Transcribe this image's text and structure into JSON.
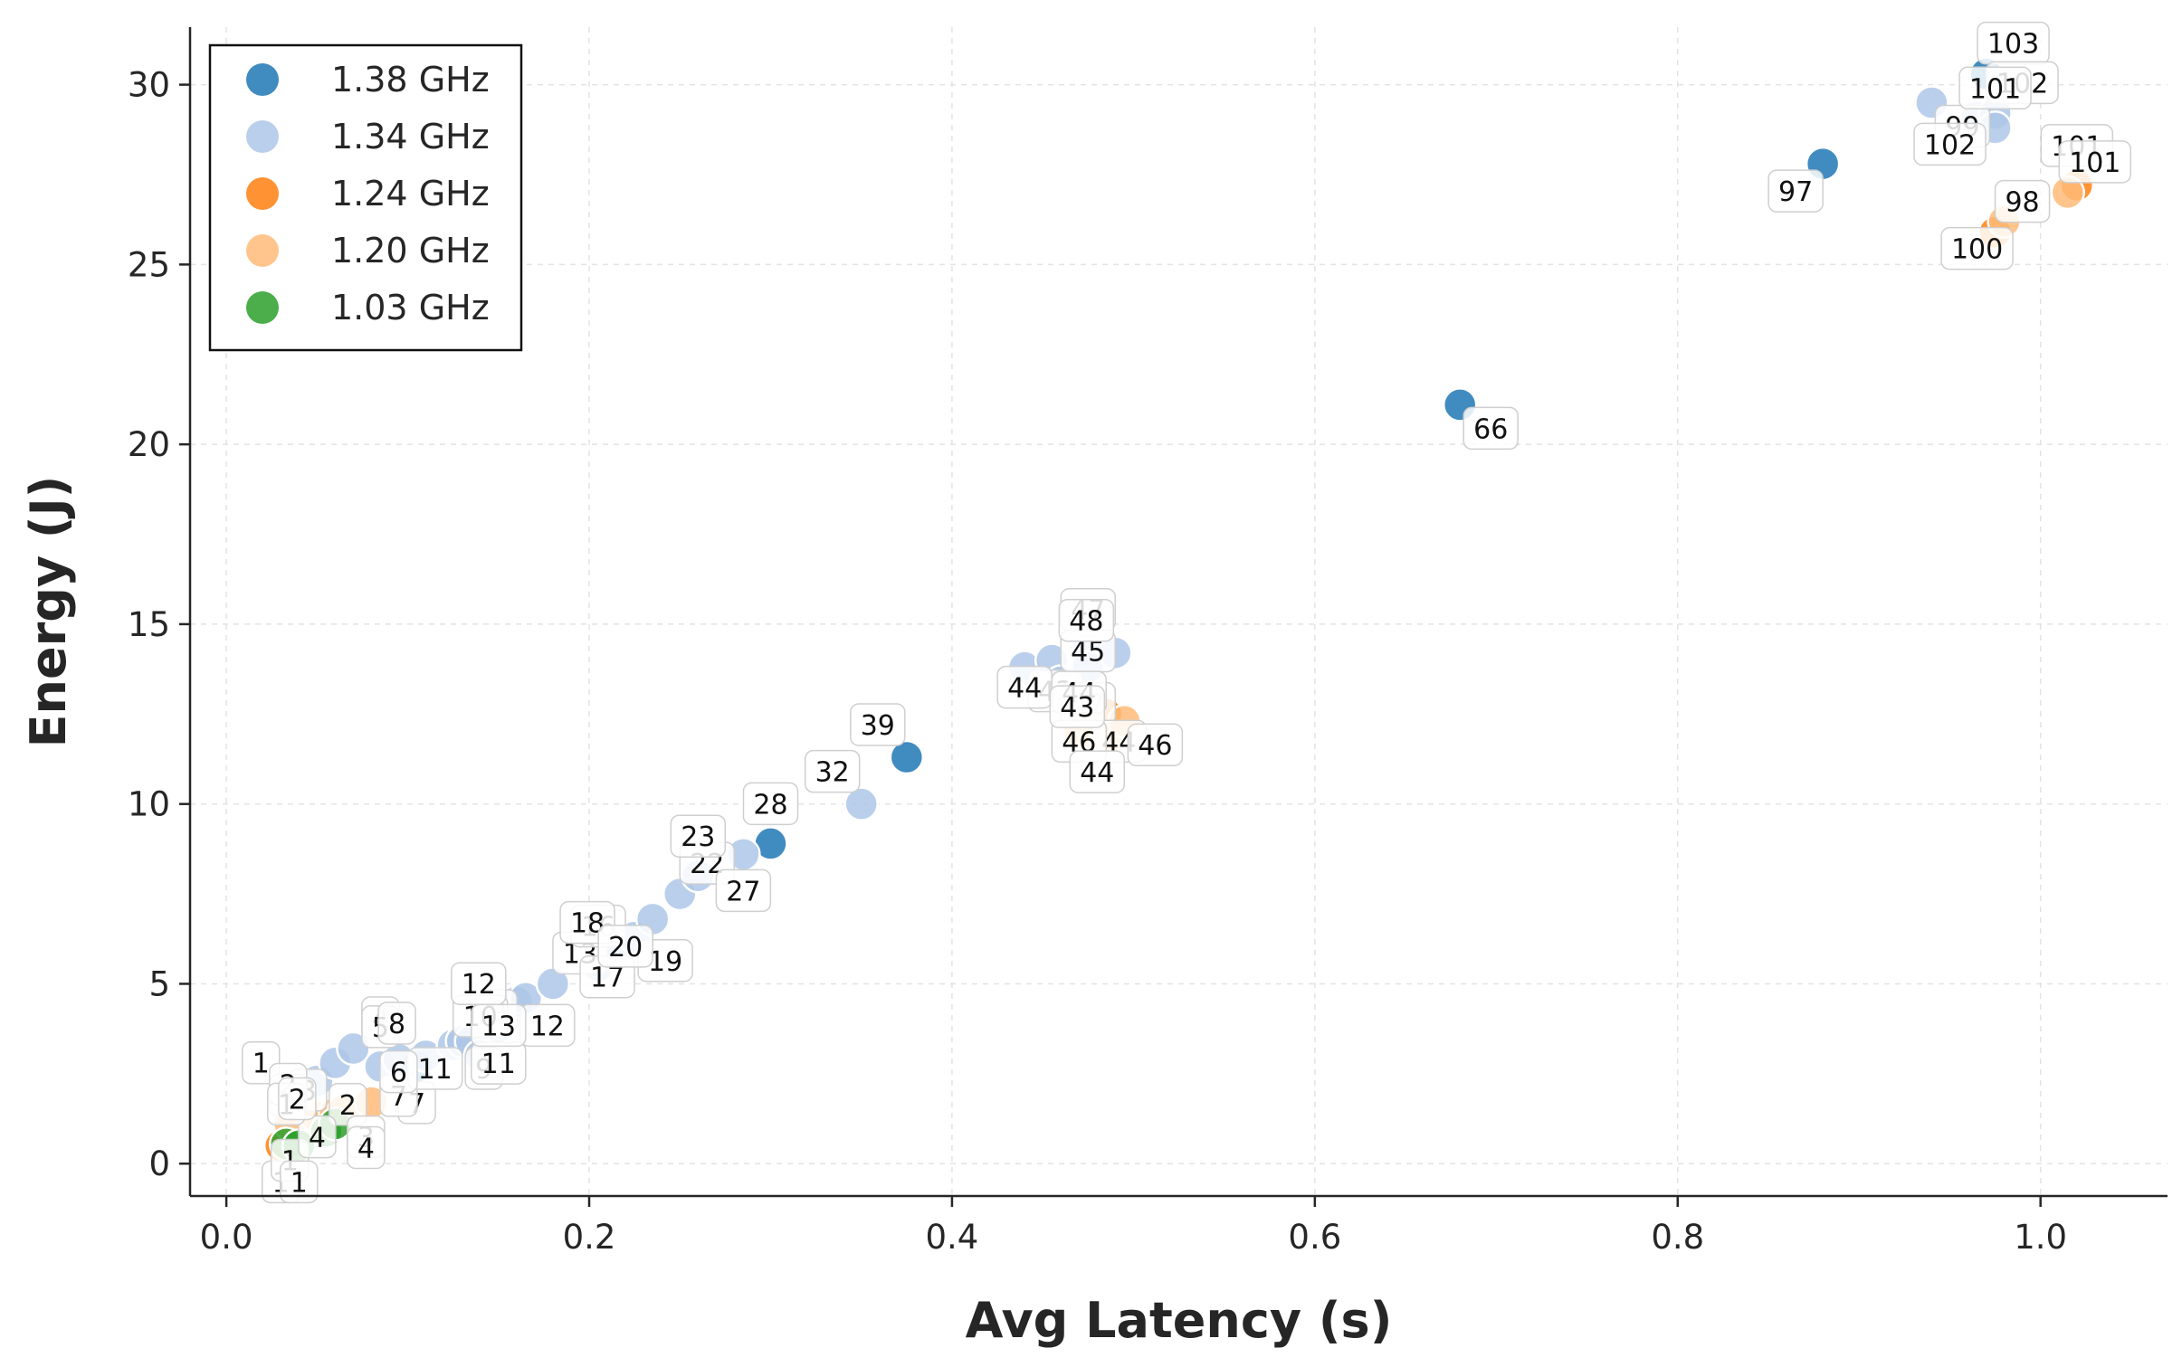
{
  "chart_data": {
    "type": "scatter",
    "xlabel": "Avg Latency (s)",
    "ylabel": "Energy (J)",
    "xlim": [
      -0.02,
      1.07
    ],
    "ylim": [
      -0.9,
      31.6
    ],
    "xticks": [
      0.0,
      0.2,
      0.4,
      0.6,
      0.8,
      1.0
    ],
    "xtick_labels": [
      "0.0",
      "0.2",
      "0.4",
      "0.6",
      "0.8",
      "1.0"
    ],
    "yticks": [
      0,
      5,
      10,
      15,
      20,
      25,
      30
    ],
    "ytick_labels": [
      "0",
      "5",
      "10",
      "15",
      "20",
      "25",
      "30"
    ],
    "grid": true,
    "legend_position": "top-left",
    "series": [
      {
        "name": "1.38 GHz",
        "color": "#1f77b4",
        "points": [
          {
            "x": 0.375,
            "y": 11.3,
            "label": "39"
          },
          {
            "x": 0.68,
            "y": 21.1,
            "label": "66"
          },
          {
            "x": 0.88,
            "y": 27.8,
            "label": "97"
          },
          {
            "x": 0.97,
            "y": 30.3,
            "label": "103"
          },
          {
            "x": 0.3,
            "y": 8.9,
            "label": "28"
          },
          {
            "x": 0.105,
            "y": 2.7,
            "label": "7"
          }
        ]
      },
      {
        "name": "1.34 GHz",
        "color": "#aec7e8",
        "points": [
          {
            "x": 0.035,
            "y": 1.9,
            "label": "1"
          },
          {
            "x": 0.05,
            "y": 2.3,
            "label": "2"
          },
          {
            "x": 0.06,
            "y": 2.8,
            "label": "3"
          },
          {
            "x": 0.07,
            "y": 3.2,
            "label": "4"
          },
          {
            "x": 0.085,
            "y": 2.7,
            "label": "5"
          },
          {
            "x": 0.095,
            "y": 2.9,
            "label": "7"
          },
          {
            "x": 0.11,
            "y": 3.0,
            "label": "8"
          },
          {
            "x": 0.125,
            "y": 3.3,
            "label": "9"
          },
          {
            "x": 0.13,
            "y": 3.4,
            "label": "11"
          },
          {
            "x": 0.135,
            "y": 3.4,
            "label": "9"
          },
          {
            "x": 0.14,
            "y": 3.0,
            "label": "10"
          },
          {
            "x": 0.15,
            "y": 3.8,
            "label": "11"
          },
          {
            "x": 0.155,
            "y": 4.1,
            "label": "12"
          },
          {
            "x": 0.16,
            "y": 4.5,
            "label": "12"
          },
          {
            "x": 0.165,
            "y": 4.6,
            "label": "13"
          },
          {
            "x": 0.18,
            "y": 5.0,
            "label": "13"
          },
          {
            "x": 0.205,
            "y": 5.5,
            "label": "16"
          },
          {
            "x": 0.21,
            "y": 6.2,
            "label": "17"
          },
          {
            "x": 0.215,
            "y": 5.8,
            "label": "18"
          },
          {
            "x": 0.225,
            "y": 6.3,
            "label": "19"
          },
          {
            "x": 0.235,
            "y": 6.8,
            "label": "20"
          },
          {
            "x": 0.25,
            "y": 7.5,
            "label": "22"
          },
          {
            "x": 0.26,
            "y": 8.0,
            "label": "23"
          },
          {
            "x": 0.285,
            "y": 8.6,
            "label": "27"
          },
          {
            "x": 0.35,
            "y": 10.0,
            "label": "32"
          },
          {
            "x": 0.44,
            "y": 13.8,
            "label": "43"
          },
          {
            "x": 0.455,
            "y": 14.0,
            "label": "44"
          },
          {
            "x": 0.46,
            "y": 13.4,
            "label": "45"
          },
          {
            "x": 0.475,
            "y": 14.3,
            "label": "47"
          },
          {
            "x": 0.475,
            "y": 13.8,
            "label": "47"
          },
          {
            "x": 0.49,
            "y": 14.2,
            "label": "48"
          },
          {
            "x": 0.94,
            "y": 29.5,
            "label": "99"
          },
          {
            "x": 0.965,
            "y": 29.1,
            "label": "102"
          },
          {
            "x": 0.975,
            "y": 29.2,
            "label": "102"
          },
          {
            "x": 0.975,
            "y": 28.8,
            "label": "101"
          }
        ]
      },
      {
        "name": "1.24 GHz",
        "color": "#ff7f0e",
        "points": [
          {
            "x": 0.03,
            "y": 0.5,
            "label": "1"
          },
          {
            "x": 0.05,
            "y": 1.0,
            "label": "2"
          },
          {
            "x": 0.475,
            "y": 12.4,
            "label": "44"
          },
          {
            "x": 0.485,
            "y": 12.5,
            "label": "46"
          },
          {
            "x": 0.975,
            "y": 25.9,
            "label": "98"
          },
          {
            "x": 1.02,
            "y": 27.2,
            "label": "101"
          }
        ]
      },
      {
        "name": "1.20 GHz",
        "color": "#ffbb78",
        "points": [
          {
            "x": 0.035,
            "y": 1.1,
            "label": "1"
          },
          {
            "x": 0.05,
            "y": 1.3,
            "label": "2"
          },
          {
            "x": 0.06,
            "y": 1.4,
            "label": "3"
          },
          {
            "x": 0.065,
            "y": 1.5,
            "label": "4"
          },
          {
            "x": 0.08,
            "y": 1.7,
            "label": "6"
          },
          {
            "x": 0.47,
            "y": 12.0,
            "label": "44"
          },
          {
            "x": 0.48,
            "y": 11.9,
            "label": "44"
          },
          {
            "x": 0.485,
            "y": 11.8,
            "label": "43"
          },
          {
            "x": 0.495,
            "y": 12.3,
            "label": "46"
          },
          {
            "x": 0.98,
            "y": 26.2,
            "label": "100"
          },
          {
            "x": 1.015,
            "y": 27.0,
            "label": "101"
          }
        ]
      },
      {
        "name": "1.03 GHz",
        "color": "#2ca02c",
        "points": [
          {
            "x": 0.033,
            "y": 0.55,
            "label": "1"
          },
          {
            "x": 0.04,
            "y": 0.5,
            "label": "1"
          },
          {
            "x": 0.055,
            "y": 0.9,
            "label": "2"
          },
          {
            "x": 0.06,
            "y": 1.1,
            "label": "4"
          }
        ]
      }
    ]
  }
}
